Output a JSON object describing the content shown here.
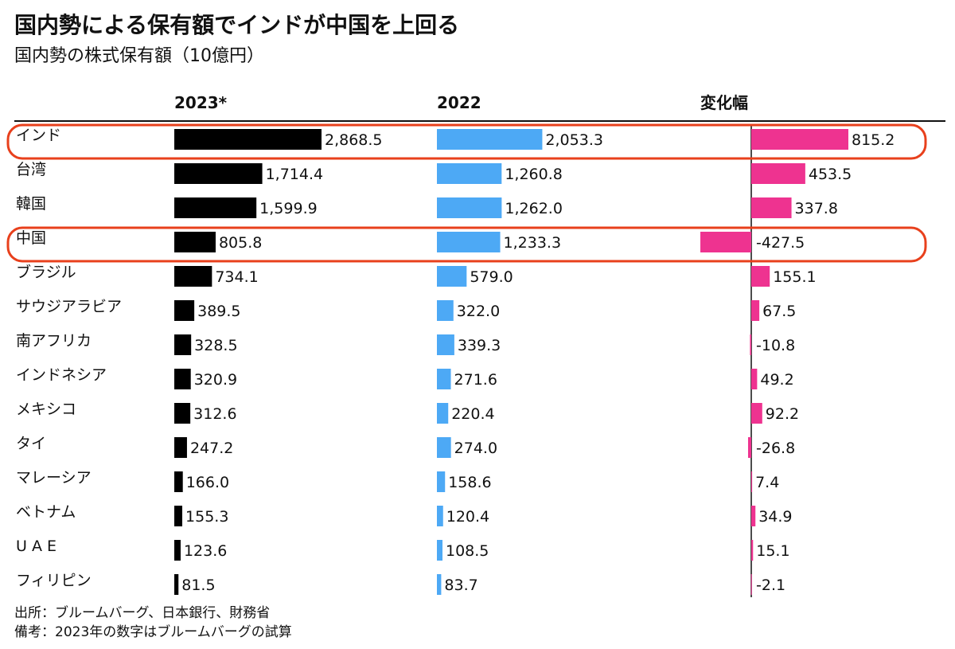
{
  "title": "国内勢による保有額でインドが中国を上回る",
  "subtitle": "国内勢の株式保有額（10億円）",
  "chart_data": {
    "type": "bar",
    "columns": [
      {
        "key": "2023",
        "header": "2023*",
        "color": "#000000"
      },
      {
        "key": "2022",
        "header": "2022",
        "color": "#4DA9F5"
      },
      {
        "key": "change",
        "header": "変化幅",
        "color": "#EE3390"
      }
    ],
    "categories": [
      "インド",
      "台湾",
      "韓国",
      "中国",
      "ブラジル",
      "サウジアラビア",
      "南アフリカ",
      "インドネシア",
      "メキシコ",
      "タイ",
      "マレーシア",
      "ベトナム",
      "U A E",
      "フィリピン"
    ],
    "series": [
      {
        "name": "2023*",
        "values": [
          2868.5,
          1714.4,
          1599.9,
          805.8,
          734.1,
          389.5,
          328.5,
          320.9,
          312.6,
          247.2,
          166.0,
          155.3,
          123.6,
          81.5
        ],
        "labels": [
          "2,868.5",
          "1,714.4",
          "1,599.9",
          "805.8",
          "734.1",
          "389.5",
          "328.5",
          "320.9",
          "312.6",
          "247.2",
          "166.0",
          "155.3",
          "123.6",
          "81.5"
        ]
      },
      {
        "name": "2022",
        "values": [
          2053.3,
          1260.8,
          1262.0,
          1233.3,
          579.0,
          322.0,
          339.3,
          271.6,
          220.4,
          274.0,
          158.6,
          120.4,
          108.5,
          83.7
        ],
        "labels": [
          "2,053.3",
          "1,260.8",
          "1,262.0",
          "1,233.3",
          "579.0",
          "322.0",
          "339.3",
          "271.6",
          "220.4",
          "274.0",
          "158.6",
          "120.4",
          "108.5",
          "83.7"
        ]
      },
      {
        "name": "変化幅",
        "values": [
          815.2,
          453.5,
          337.8,
          -427.5,
          155.1,
          67.5,
          -10.8,
          49.2,
          92.2,
          -26.8,
          7.4,
          34.9,
          15.1,
          -2.1
        ],
        "labels": [
          "815.2",
          "453.5",
          "337.8",
          "-427.5",
          "155.1",
          "67.5",
          "-10.8",
          "49.2",
          "92.2",
          "-26.8",
          "7.4",
          "34.9",
          "15.1",
          "-2.1"
        ]
      }
    ],
    "highlighted_categories": [
      "インド",
      "中国"
    ],
    "highlight_color": "#E8401C"
  },
  "footer": {
    "source": "出所：ブルームバーグ、日本銀行、財務省",
    "note": "備考：2023年の数字はブルームバーグの試算"
  }
}
